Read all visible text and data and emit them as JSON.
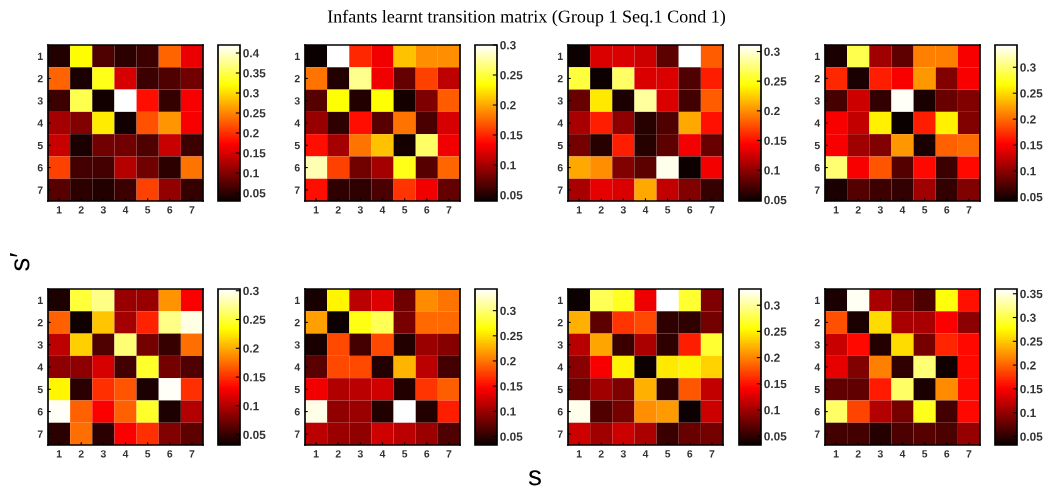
{
  "chart_data": [
    {
      "type": "heatmap",
      "annotations": [
        "Infants learnt transition matrix (Group 1 Seq.1 Cond 1)"
      ],
      "ylabel": "s′",
      "categories": [
        "1",
        "2",
        "3",
        "4",
        "5",
        "6",
        "7"
      ],
      "y_categories": [
        "1",
        "2",
        "3",
        "4",
        "5",
        "6",
        "7"
      ],
      "clim": [
        0.03,
        0.42
      ],
      "cticks": [
        0.05,
        0.1,
        0.15,
        0.2,
        0.25,
        0.3,
        0.35,
        0.4
      ],
      "cells": [
        [
          0.045,
          0.32,
          0.07,
          0.05,
          0.06,
          0.23,
          0.16
        ],
        [
          0.23,
          0.04,
          0.33,
          0.15,
          0.06,
          0.07,
          0.09
        ],
        [
          0.06,
          0.35,
          0.035,
          0.42,
          0.18,
          0.055,
          0.17
        ],
        [
          0.12,
          0.1,
          0.31,
          0.035,
          0.22,
          0.26,
          0.17
        ],
        [
          0.14,
          0.04,
          0.09,
          0.09,
          0.07,
          0.14,
          0.06
        ],
        [
          0.21,
          0.065,
          0.065,
          0.13,
          0.09,
          0.05,
          0.24
        ],
        [
          0.075,
          0.05,
          0.045,
          0.06,
          0.21,
          0.11,
          0.055
        ]
      ]
    },
    {
      "type": "heatmap",
      "categories": [
        "1",
        "2",
        "3",
        "4",
        "5",
        "6",
        "7"
      ],
      "y_categories": [
        "1",
        "2",
        "3",
        "4",
        "5",
        "6",
        "7"
      ],
      "clim": [
        0.04,
        0.3
      ],
      "cticks": [
        0.05,
        0.1,
        0.15,
        0.2,
        0.25,
        0.3
      ],
      "cells": [
        [
          0.04,
          0.3,
          0.15,
          0.13,
          0.21,
          0.19,
          0.19
        ],
        [
          0.18,
          0.05,
          0.27,
          0.13,
          0.075,
          0.16,
          0.11
        ],
        [
          0.07,
          0.235,
          0.05,
          0.235,
          0.045,
          0.085,
          0.17
        ],
        [
          0.095,
          0.055,
          0.14,
          0.07,
          0.18,
          0.065,
          0.12
        ],
        [
          0.14,
          0.1,
          0.18,
          0.21,
          0.045,
          0.26,
          0.13
        ],
        [
          0.28,
          0.16,
          0.08,
          0.1,
          0.24,
          0.07,
          0.175
        ],
        [
          0.14,
          0.055,
          0.055,
          0.065,
          0.155,
          0.13,
          0.075
        ]
      ]
    },
    {
      "type": "heatmap",
      "categories": [
        "1",
        "2",
        "3",
        "4",
        "5",
        "6",
        "7"
      ],
      "y_categories": [
        "1",
        "2",
        "3",
        "4",
        "5",
        "6",
        "7"
      ],
      "clim": [
        0.048,
        0.311
      ],
      "cticks": [
        0.05,
        0.1,
        0.15,
        0.2,
        0.25,
        0.3
      ],
      "cells": [
        [
          0.05,
          0.13,
          0.13,
          0.125,
          0.08,
          0.31,
          0.18
        ],
        [
          0.26,
          0.05,
          0.27,
          0.13,
          0.13,
          0.075,
          0.155
        ],
        [
          0.085,
          0.235,
          0.055,
          0.285,
          0.13,
          0.07,
          0.18
        ],
        [
          0.11,
          0.155,
          0.1,
          0.06,
          0.075,
          0.21,
          0.15
        ],
        [
          0.09,
          0.06,
          0.155,
          0.06,
          0.08,
          0.14,
          0.085
        ],
        [
          0.21,
          0.2,
          0.095,
          0.08,
          0.305,
          0.05,
          0.14
        ],
        [
          0.11,
          0.135,
          0.13,
          0.21,
          0.12,
          0.095,
          0.065
        ]
      ]
    },
    {
      "type": "heatmap",
      "categories": [
        "1",
        "2",
        "3",
        "4",
        "5",
        "6",
        "7"
      ],
      "y_categories": [
        "1",
        "2",
        "3",
        "4",
        "5",
        "6",
        "7"
      ],
      "clim": [
        0.042,
        0.343
      ],
      "cticks": [
        0.05,
        0.1,
        0.15,
        0.2,
        0.25,
        0.3
      ],
      "cells": [
        [
          0.05,
          0.29,
          0.11,
          0.08,
          0.21,
          0.21,
          0.15
        ],
        [
          0.17,
          0.05,
          0.165,
          0.15,
          0.22,
          0.095,
          0.15
        ],
        [
          0.07,
          0.13,
          0.06,
          0.34,
          0.05,
          0.085,
          0.095
        ],
        [
          0.15,
          0.125,
          0.26,
          0.04,
          0.165,
          0.26,
          0.095
        ],
        [
          0.15,
          0.11,
          0.095,
          0.22,
          0.05,
          0.195,
          0.2
        ],
        [
          0.3,
          0.15,
          0.19,
          0.075,
          0.155,
          0.065,
          0.155
        ],
        [
          0.05,
          0.075,
          0.065,
          0.06,
          0.11,
          0.06,
          0.095
        ]
      ]
    },
    {
      "type": "heatmap",
      "categories": [
        "1",
        "2",
        "3",
        "4",
        "5",
        "6",
        "7"
      ],
      "y_categories": [
        "1",
        "2",
        "3",
        "4",
        "5",
        "6",
        "7"
      ],
      "clim": [
        0.032,
        0.303
      ],
      "cticks": [
        0.05,
        0.1,
        0.15,
        0.2,
        0.25,
        0.3
      ],
      "cells": [
        [
          0.04,
          0.25,
          0.27,
          0.09,
          0.09,
          0.19,
          0.13
        ],
        [
          0.17,
          0.035,
          0.21,
          0.095,
          0.145,
          0.27,
          0.295
        ],
        [
          0.105,
          0.215,
          0.06,
          0.265,
          0.075,
          0.05,
          0.175
        ],
        [
          0.085,
          0.085,
          0.115,
          0.055,
          0.245,
          0.075,
          0.06
        ],
        [
          0.23,
          0.045,
          0.15,
          0.165,
          0.04,
          0.3,
          0.15
        ],
        [
          0.3,
          0.17,
          0.13,
          0.17,
          0.245,
          0.04,
          0.1
        ],
        [
          0.045,
          0.175,
          0.045,
          0.13,
          0.15,
          0.08,
          0.065
        ]
      ]
    },
    {
      "type": "heatmap",
      "categories": [
        "1",
        "2",
        "3",
        "4",
        "5",
        "6",
        "7"
      ],
      "y_categories": [
        "1",
        "2",
        "3",
        "4",
        "5",
        "6",
        "7"
      ],
      "clim": [
        0.033,
        0.343
      ],
      "cticks": [
        0.05,
        0.1,
        0.15,
        0.2,
        0.25,
        0.3
      ],
      "cells": [
        [
          0.04,
          0.26,
          0.115,
          0.13,
          0.08,
          0.21,
          0.2
        ],
        [
          0.22,
          0.035,
          0.27,
          0.29,
          0.085,
          0.195,
          0.195
        ],
        [
          0.04,
          0.18,
          0.06,
          0.18,
          0.045,
          0.1,
          0.09
        ],
        [
          0.07,
          0.18,
          0.18,
          0.045,
          0.23,
          0.115,
          0.06
        ],
        [
          0.14,
          0.11,
          0.115,
          0.125,
          0.045,
          0.17,
          0.19
        ],
        [
          0.335,
          0.095,
          0.1,
          0.045,
          0.343,
          0.045,
          0.16
        ],
        [
          0.115,
          0.1,
          0.095,
          0.125,
          0.115,
          0.1,
          0.065
        ]
      ]
    },
    {
      "type": "heatmap",
      "xlabel": "s",
      "categories": [
        "1",
        "2",
        "3",
        "4",
        "5",
        "6",
        "7"
      ],
      "y_categories": [
        "1",
        "2",
        "3",
        "4",
        "5",
        "6",
        "7"
      ],
      "clim": [
        0.033,
        0.331
      ],
      "cticks": [
        0.05,
        0.1,
        0.15,
        0.2,
        0.25,
        0.3
      ],
      "cells": [
        [
          0.035,
          0.28,
          0.265,
          0.135,
          0.33,
          0.27,
          0.085
        ],
        [
          0.22,
          0.07,
          0.165,
          0.175,
          0.05,
          0.05,
          0.08
        ],
        [
          0.11,
          0.215,
          0.055,
          0.105,
          0.05,
          0.155,
          0.27
        ],
        [
          0.09,
          0.14,
          0.25,
          0.035,
          0.245,
          0.25,
          0.235
        ],
        [
          0.075,
          0.1,
          0.085,
          0.22,
          0.05,
          0.18,
          0.115
        ],
        [
          0.325,
          0.065,
          0.08,
          0.205,
          0.21,
          0.035,
          0.12
        ],
        [
          0.12,
          0.1,
          0.12,
          0.105,
          0.055,
          0.075,
          0.08
        ]
      ]
    },
    {
      "type": "heatmap",
      "categories": [
        "1",
        "2",
        "3",
        "4",
        "5",
        "6",
        "7"
      ],
      "y_categories": [
        "1",
        "2",
        "3",
        "4",
        "5",
        "6",
        "7"
      ],
      "clim": [
        0.032,
        0.36
      ],
      "cticks": [
        0.05,
        0.1,
        0.15,
        0.2,
        0.25,
        0.3,
        0.35
      ],
      "cells": [
        [
          0.04,
          0.355,
          0.11,
          0.085,
          0.065,
          0.28,
          0.16
        ],
        [
          0.19,
          0.04,
          0.26,
          0.11,
          0.11,
          0.15,
          0.095
        ],
        [
          0.125,
          0.155,
          0.045,
          0.26,
          0.085,
          0.17,
          0.155
        ],
        [
          0.14,
          0.09,
          0.215,
          0.05,
          0.315,
          0.035,
          0.155
        ],
        [
          0.075,
          0.075,
          0.165,
          0.31,
          0.04,
          0.22,
          0.155
        ],
        [
          0.31,
          0.185,
          0.115,
          0.085,
          0.285,
          0.06,
          0.155
        ],
        [
          0.06,
          0.06,
          0.045,
          0.065,
          0.07,
          0.065,
          0.1
        ]
      ]
    }
  ]
}
